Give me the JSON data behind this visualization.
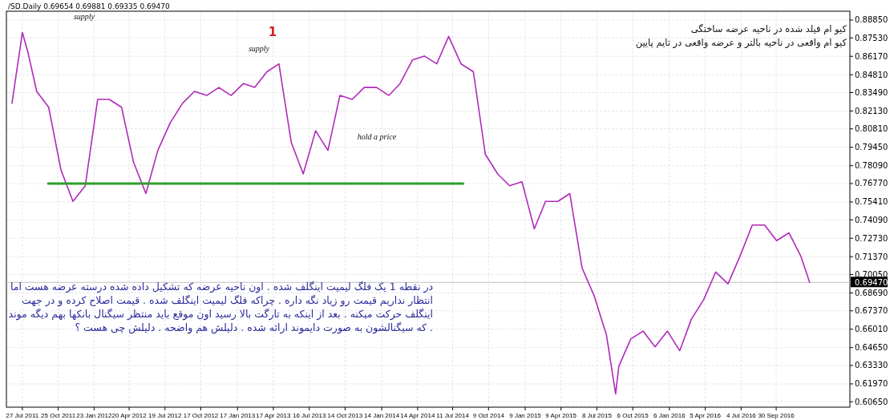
{
  "chart_data": {
    "type": "line",
    "title": "/SD.Daily  0.69654 0.69881 0.69335 0.69470",
    "xlim": [
      "2011-06-17",
      "2017-04-03"
    ],
    "xticks": [
      {
        "value": "2011-07-27",
        "label": "27 Jul 2011"
      },
      {
        "value": "2011-10-25",
        "label": "25 Oct 2011"
      },
      {
        "value": "2012-01-23",
        "label": "23 Jan 2012"
      },
      {
        "value": "2012-04-20",
        "label": "20 Apr 2012"
      },
      {
        "value": "2012-07-19",
        "label": "19 Jul 2012"
      },
      {
        "value": "2012-10-17",
        "label": "17 Oct 2012"
      },
      {
        "value": "2013-01-17",
        "label": "17 Jan 2013"
      },
      {
        "value": "2013-04-17",
        "label": "17 Apr 2013"
      },
      {
        "value": "2013-07-16",
        "label": "16 Jul 2013"
      },
      {
        "value": "2013-10-14",
        "label": "14 Oct 2013"
      },
      {
        "value": "2014-01-14",
        "label": "14 Jan 2014"
      },
      {
        "value": "2014-04-14",
        "label": "14 Apr 2014"
      },
      {
        "value": "2014-07-11",
        "label": "11 Jul 2014"
      },
      {
        "value": "2014-10-09",
        "label": "9 Oct 2014"
      },
      {
        "value": "2015-01-09",
        "label": "9 Jan 2015"
      },
      {
        "value": "2015-04-09",
        "label": "9 Apr 2015"
      },
      {
        "value": "2015-07-08",
        "label": "8 Jul 2015"
      },
      {
        "value": "2015-10-06",
        "label": "6 Oct 2015"
      },
      {
        "value": "2016-01-06",
        "label": "6 Jan 2016"
      },
      {
        "value": "2016-04-05",
        "label": "5 Apr 2016"
      },
      {
        "value": "2016-07-04",
        "label": "4 Jul 2016"
      },
      {
        "value": "2016-09-30",
        "label": "30 Sep 2016"
      }
    ],
    "ylim": [
      0.6025,
      0.895
    ],
    "yticks": [
      {
        "value": 0.8885,
        "label": "0.88850"
      },
      {
        "value": 0.8753,
        "label": "0.87530"
      },
      {
        "value": 0.8617,
        "label": "0.86170"
      },
      {
        "value": 0.8481,
        "label": "0.84810"
      },
      {
        "value": 0.8349,
        "label": "0.83490"
      },
      {
        "value": 0.8213,
        "label": "0.82130"
      },
      {
        "value": 0.8081,
        "label": "0.80810"
      },
      {
        "value": 0.7945,
        "label": "0.79450"
      },
      {
        "value": 0.7809,
        "label": "0.78090"
      },
      {
        "value": 0.7677,
        "label": "0.76770"
      },
      {
        "value": 0.7541,
        "label": "0.75410"
      },
      {
        "value": 0.7409,
        "label": "0.74090"
      },
      {
        "value": 0.7273,
        "label": "0.72730"
      },
      {
        "value": 0.7137,
        "label": "0.71370"
      },
      {
        "value": 0.7005,
        "label": "0.70050"
      },
      {
        "value": 0.6869,
        "label": "0.68690"
      },
      {
        "value": 0.6737,
        "label": "0.67370"
      },
      {
        "value": 0.6601,
        "label": "0.66010"
      },
      {
        "value": 0.6465,
        "label": "0.64650"
      },
      {
        "value": 0.6333,
        "label": "0.63330"
      },
      {
        "value": 0.6197,
        "label": "0.61970"
      },
      {
        "value": 0.6065,
        "label": "0.60650"
      }
    ],
    "grid": true,
    "series": [
      {
        "color": "#b02ab8",
        "x": [
          "2011-07-01",
          "2011-07-27",
          "2011-08-10",
          "2011-09-01",
          "2011-10-01",
          "2011-11-01",
          "2011-12-01",
          "2012-01-01",
          "2012-02-01",
          "2012-03-01",
          "2012-04-01",
          "2012-05-01",
          "2012-06-01",
          "2012-07-01",
          "2012-08-01",
          "2012-09-01",
          "2012-10-01",
          "2012-11-01",
          "2012-12-01",
          "2013-01-01",
          "2013-02-01",
          "2013-03-01",
          "2013-04-01",
          "2013-05-01",
          "2013-06-01",
          "2013-07-01",
          "2013-08-01",
          "2013-09-01",
          "2013-10-01",
          "2013-11-01",
          "2013-12-01",
          "2014-01-01",
          "2014-02-01",
          "2014-03-01",
          "2014-04-01",
          "2014-05-01",
          "2014-06-01",
          "2014-07-01",
          "2014-08-01",
          "2014-09-01",
          "2014-10-01",
          "2014-11-01",
          "2014-12-01",
          "2015-01-01",
          "2015-02-01",
          "2015-03-01",
          "2015-04-01",
          "2015-05-01",
          "2015-06-01",
          "2015-07-01",
          "2015-08-01",
          "2015-08-24",
          "2015-09-01",
          "2015-10-01",
          "2015-11-01",
          "2015-12-01",
          "2016-01-01",
          "2016-02-01",
          "2016-03-01",
          "2016-04-01",
          "2016-05-01",
          "2016-06-01",
          "2016-07-01",
          "2016-08-01",
          "2016-09-01",
          "2016-10-01",
          "2016-11-01",
          "2016-12-01",
          "2016-12-23"
        ],
        "values": [
          0.827,
          0.8793,
          0.8648,
          0.8358,
          0.8241,
          0.7777,
          0.7545,
          0.7661,
          0.8299,
          0.8299,
          0.8241,
          0.7835,
          0.7603,
          0.7922,
          0.8125,
          0.827,
          0.8358,
          0.8328,
          0.8387,
          0.8328,
          0.8416,
          0.8387,
          0.8503,
          0.8561,
          0.798,
          0.7748,
          0.8067,
          0.7922,
          0.8328,
          0.8299,
          0.8387,
          0.8387,
          0.8328,
          0.8416,
          0.859,
          0.8619,
          0.8561,
          0.8764,
          0.8561,
          0.8503,
          0.7893,
          0.7748,
          0.7661,
          0.769,
          0.7342,
          0.7545,
          0.7545,
          0.7603,
          0.7052,
          0.6849,
          0.6558,
          0.6123,
          0.6326,
          0.6529,
          0.6587,
          0.6471,
          0.6587,
          0.6442,
          0.6674,
          0.6819,
          0.7023,
          0.6936,
          0.7139,
          0.7371,
          0.7371,
          0.7255,
          0.7313,
          0.7139,
          0.6947
        ]
      },
      {
        "color": "#2ca02c",
        "x": [
          "2011-09-30",
          "2014-08-06"
        ],
        "values": [
          0.7677,
          0.7677
        ]
      }
    ],
    "ref_lines": [
      {
        "axis": "y",
        "value": 0.6947,
        "label": "0.69470",
        "color": "#c0c0c0"
      }
    ],
    "annotations": [
      "supply",
      "supply",
      "1",
      "hold a price",
      "در نقطه 1 یک فلگ لیمیت اینگلف شده . اون ناحیه عرضه که تشکیل داده شده درسته عرضه هست اما\nانتظار نداریم قیمت رو زیاد نگه داره . چراکه فلگ لیمیت اینگلف شده . قیمت اصلاح کرده و در جهت\nاینگلف حرکت میکنه . بعد از اینکه به تارگت بالا رسید اون موقع باید منتظر سیگنال بانکها بهم دیگه موند\n. که سیگنالشون به صورت دایموند ارائه شده . دلیلش هم واضحه . دلیلش چی هست ؟",
      "کیو ام فیلد شده در ناحیه عرضه ساختگی\nکیو ام واقعی در ناحیه بالتر و عرضه واقعی در تایم پایین"
    ]
  }
}
